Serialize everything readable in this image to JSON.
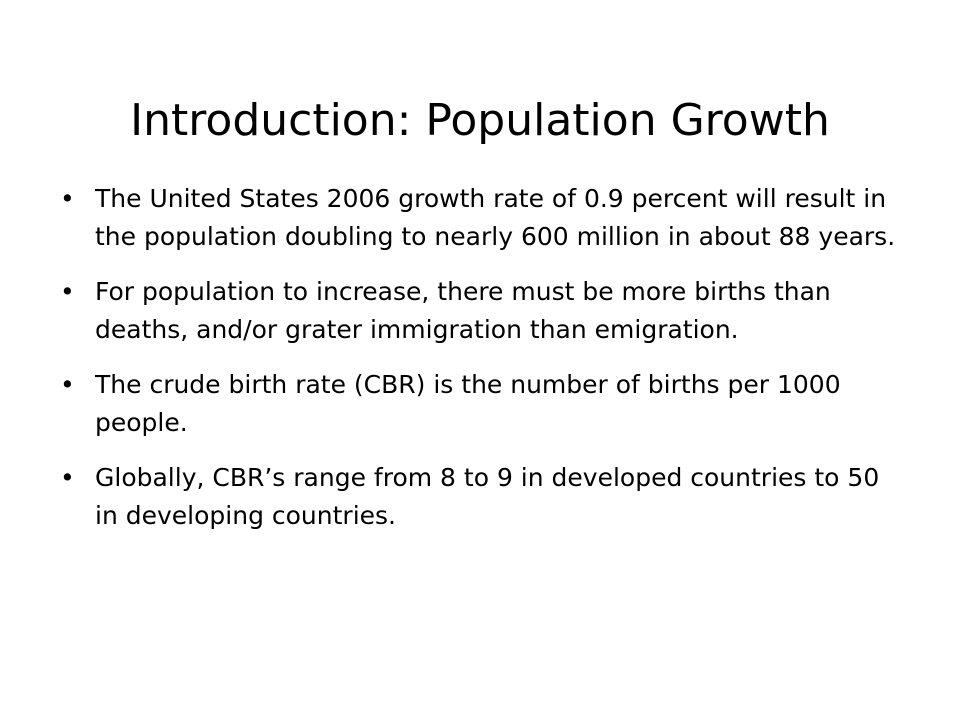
{
  "slide": {
    "title": "Introduction: Population Growth",
    "bullet_symbol": "•",
    "bullets": [
      {
        "text": "The United States 2006 growth rate of 0.9 percent will result in the population doubling to nearly 600 million in about 88 years."
      },
      {
        "text": "For population to increase, there must be more births than deaths, and/or grater immigration than emigration."
      },
      {
        "text": "The crude birth rate (CBR) is the number of births per 1000 people."
      },
      {
        "text": "Globally, CBR’s range from 8 to 9 in developed countries to 50 in developing countries."
      }
    ]
  }
}
